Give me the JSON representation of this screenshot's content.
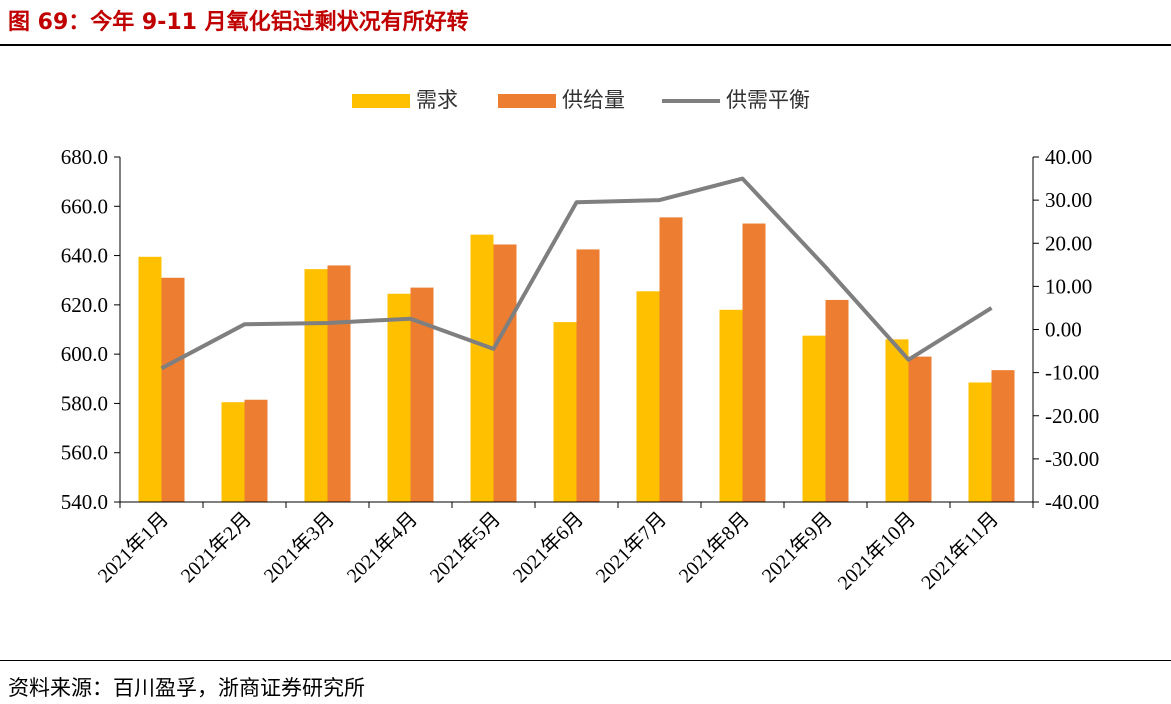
{
  "figure": {
    "title": "图 69：今年 9-11 月氧化铝过剩状况有所好转",
    "source": "资料来源：百川盈孚，浙商证券研究所"
  },
  "colors": {
    "demand": "#ffc000",
    "supply": "#ed7d31",
    "balance": "#7f7f7f",
    "title": "#c00000"
  },
  "chart_data": {
    "type": "bar",
    "categories": [
      "2021年1月",
      "2021年2月",
      "2021年3月",
      "2021年4月",
      "2021年5月",
      "2021年6月",
      "2021年7月",
      "2021年8月",
      "2021年9月",
      "2021年10月",
      "2021年11月"
    ],
    "series": [
      {
        "name": "需求",
        "type": "bar",
        "axis": "left",
        "values": [
          639.5,
          580.5,
          634.5,
          624.5,
          648.5,
          613.0,
          625.5,
          618.0,
          607.5,
          606.0,
          588.5
        ]
      },
      {
        "name": "供给量",
        "type": "bar",
        "axis": "left",
        "values": [
          631.0,
          581.5,
          636.0,
          627.0,
          644.5,
          642.5,
          655.5,
          653.0,
          622.0,
          599.0,
          593.5
        ]
      },
      {
        "name": "供需平衡",
        "type": "line",
        "axis": "right",
        "values": [
          -9.0,
          1.2,
          1.5,
          2.5,
          -4.5,
          29.5,
          30.0,
          35.0,
          14.5,
          -7.0,
          5.0
        ]
      }
    ],
    "ylim": [
      540,
      680
    ],
    "y2lim": [
      -40,
      40
    ],
    "yticks": [
      "680.0",
      "660.0",
      "640.0",
      "620.0",
      "600.0",
      "580.0",
      "560.0",
      "540.0"
    ],
    "y2ticks": [
      "40.00",
      "30.00",
      "20.00",
      "10.00",
      "0.00",
      "-10.00",
      "-20.00",
      "-30.00",
      "-40.00"
    ],
    "legend_position": "top-center",
    "grid": false
  }
}
